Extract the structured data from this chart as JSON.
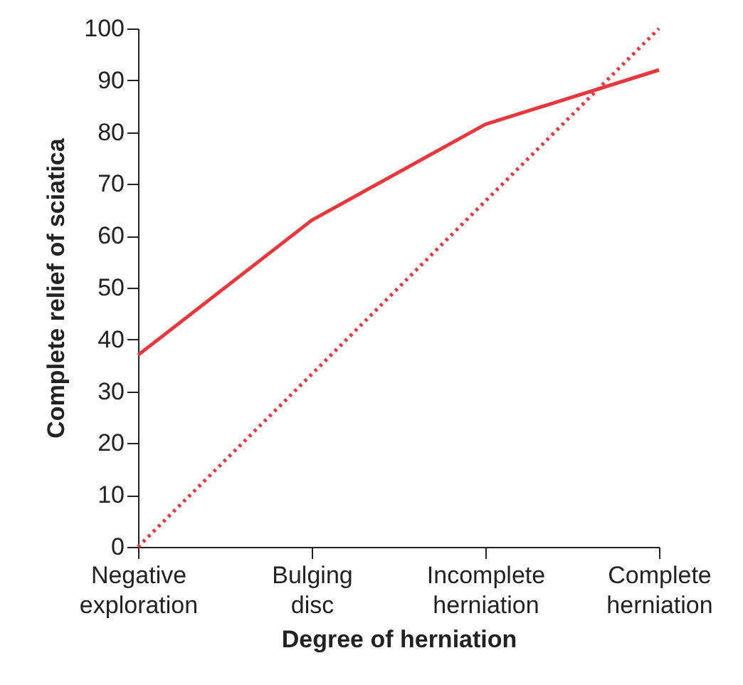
{
  "chart_data": {
    "type": "line",
    "xlabel": "Degree of herniation",
    "ylabel": "Complete relief of sciatica",
    "categories": [
      "Negative exploration",
      "Bulging disc",
      "Incomplete herniation",
      "Complete herniation"
    ],
    "series": [
      {
        "color": "#e8383d",
        "line_style": "solid",
        "values": [
          37,
          63,
          81.5,
          92
        ]
      },
      {
        "color": "#e8383d",
        "line_style": "dotted",
        "values": [
          0,
          33.3,
          66.7,
          100
        ]
      }
    ],
    "ylim": [
      0,
      100
    ],
    "yticks": [
      0,
      10,
      20,
      30,
      40,
      50,
      60,
      70,
      80,
      90,
      100
    ],
    "marker": "none"
  }
}
